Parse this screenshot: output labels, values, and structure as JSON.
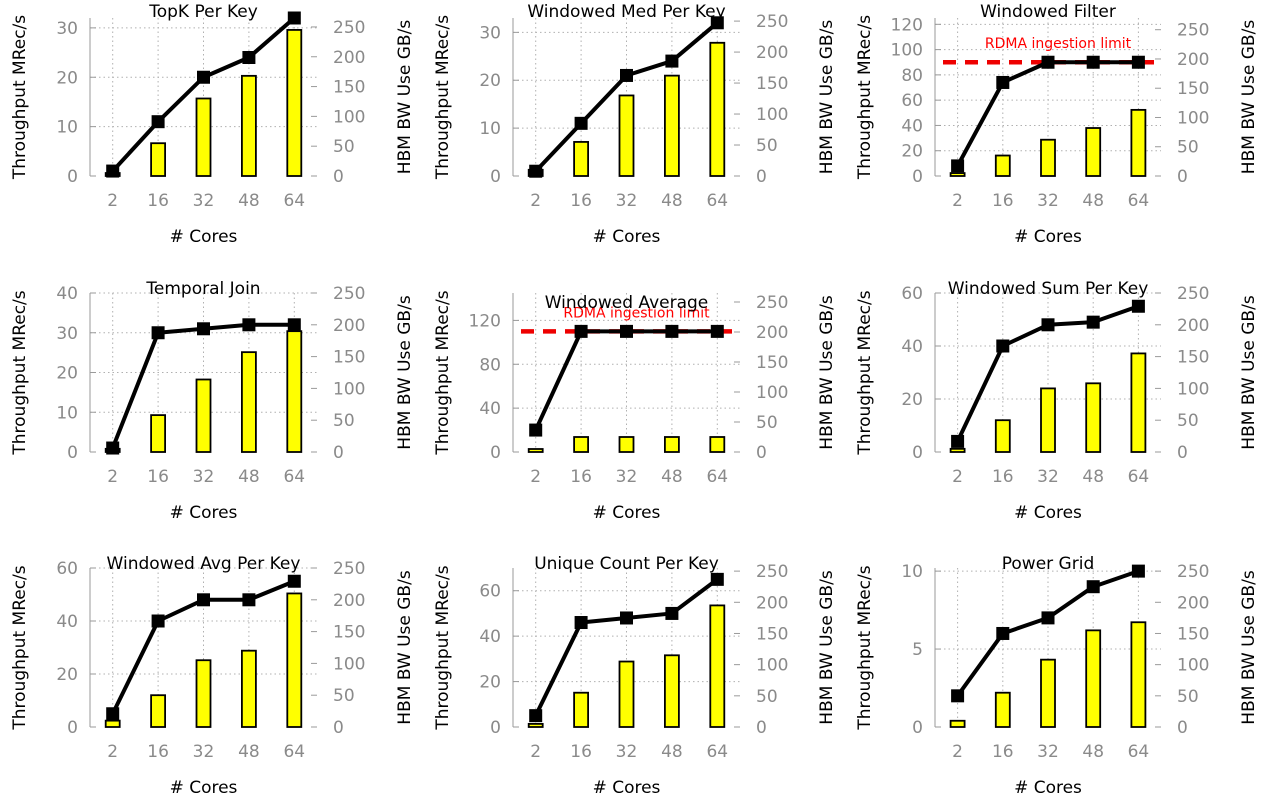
{
  "chart_data": [
    {
      "type": "bar",
      "title": "TopK Per Key",
      "xlabel": "# Cores",
      "ylabel": "Throughput MRec/s",
      "y2label": "HBM BW Use GB/s",
      "categories": [
        "2",
        "16",
        "32",
        "48",
        "64"
      ],
      "ylim": [
        0,
        32
      ],
      "yticks": [
        0,
        10,
        20,
        30
      ],
      "y2lim": [
        0,
        265
      ],
      "y2ticks": [
        0,
        50,
        100,
        150,
        200,
        250
      ],
      "series": [
        {
          "kind": "line",
          "axis": "y",
          "values": [
            1,
            11,
            20,
            24,
            32
          ]
        },
        {
          "kind": "bar",
          "axis": "y2",
          "values": [
            5,
            55,
            130,
            168,
            245
          ]
        }
      ],
      "grid": true
    },
    {
      "type": "bar",
      "title": "Windowed Med Per Key",
      "xlabel": "# Cores",
      "ylabel": "Throughput MRec/s",
      "y2label": "HBM BW Use GB/s",
      "categories": [
        "2",
        "16",
        "32",
        "48",
        "64"
      ],
      "ylim": [
        0,
        33
      ],
      "yticks": [
        0,
        10,
        20,
        30
      ],
      "y2lim": [
        0,
        255
      ],
      "y2ticks": [
        0,
        50,
        100,
        150,
        200,
        250
      ],
      "series": [
        {
          "kind": "line",
          "axis": "y",
          "values": [
            1,
            11,
            21,
            24,
            32
          ]
        },
        {
          "kind": "bar",
          "axis": "y2",
          "values": [
            10,
            55,
            130,
            162,
            215
          ]
        }
      ],
      "grid": true
    },
    {
      "type": "bar",
      "title": "Windowed Filter",
      "xlabel": "# Cores",
      "ylabel": "Throughput MRec/s",
      "y2label": "HBM BW Use GB/s",
      "categories": [
        "2",
        "16",
        "32",
        "48",
        "64"
      ],
      "ylim": [
        0,
        125
      ],
      "yticks": [
        0,
        20,
        40,
        60,
        80,
        100,
        120
      ],
      "y2lim": [
        0,
        270
      ],
      "y2ticks": [
        0,
        50,
        100,
        150,
        200,
        250
      ],
      "limit": {
        "value": 90,
        "label": "RDMA ingestion limit"
      },
      "series": [
        {
          "kind": "line",
          "axis": "y",
          "values": [
            8,
            74,
            90,
            90,
            90
          ]
        },
        {
          "kind": "bar",
          "axis": "y2",
          "values": [
            5,
            35,
            62,
            82,
            113
          ]
        }
      ],
      "grid": true
    },
    {
      "type": "bar",
      "title": "Temporal Join",
      "xlabel": "# Cores",
      "ylabel": "Throughput MRec/s",
      "y2label": "HBM BW Use GB/s",
      "categories": [
        "2",
        "16",
        "32",
        "48",
        "64"
      ],
      "ylim": [
        0,
        40
      ],
      "yticks": [
        0,
        10,
        20,
        30,
        40
      ],
      "y2lim": [
        0,
        250
      ],
      "y2ticks": [
        0,
        50,
        100,
        150,
        200,
        250
      ],
      "series": [
        {
          "kind": "line",
          "axis": "y",
          "values": [
            1,
            30,
            31,
            32,
            32
          ]
        },
        {
          "kind": "bar",
          "axis": "y2",
          "values": [
            5,
            58,
            114,
            157,
            190
          ]
        }
      ],
      "grid": true
    },
    {
      "type": "bar",
      "title": "Windowed Average",
      "xlabel": "# Cores",
      "ylabel": "Throughput MRec/s",
      "y2label": "HBM BW Use GB/s",
      "categories": [
        "2",
        "16",
        "32",
        "48",
        "64"
      ],
      "ylim": [
        0,
        145
      ],
      "yticks": [
        0,
        40,
        80,
        120
      ],
      "y2lim": [
        0,
        265
      ],
      "y2ticks": [
        0,
        50,
        100,
        150,
        200,
        250
      ],
      "limit": {
        "value": 110,
        "label": "RDMA ingestion limit"
      },
      "series": [
        {
          "kind": "line",
          "axis": "y",
          "values": [
            20,
            110,
            110,
            110,
            110
          ]
        },
        {
          "kind": "bar",
          "axis": "y2",
          "values": [
            5,
            25,
            25,
            25,
            25
          ]
        }
      ],
      "grid": true
    },
    {
      "type": "bar",
      "title": "Windowed Sum Per Key",
      "xlabel": "# Cores",
      "ylabel": "Throughput MRec/s",
      "y2label": "HBM BW Use GB/s",
      "categories": [
        "2",
        "16",
        "32",
        "48",
        "64"
      ],
      "ylim": [
        0,
        60
      ],
      "yticks": [
        0,
        20,
        40,
        60
      ],
      "y2lim": [
        0,
        250
      ],
      "y2ticks": [
        0,
        50,
        100,
        150,
        200,
        250
      ],
      "series": [
        {
          "kind": "line",
          "axis": "y",
          "values": [
            4,
            40,
            48,
            49,
            55
          ]
        },
        {
          "kind": "bar",
          "axis": "y2",
          "values": [
            5,
            50,
            100,
            108,
            155
          ]
        }
      ],
      "grid": true
    },
    {
      "type": "bar",
      "title": "Windowed Avg Per Key",
      "xlabel": "# Cores",
      "ylabel": "Throughput MRec/s",
      "y2label": "HBM BW Use GB/s",
      "categories": [
        "2",
        "16",
        "32",
        "48",
        "64"
      ],
      "ylim": [
        0,
        60
      ],
      "yticks": [
        0,
        20,
        40,
        60
      ],
      "y2lim": [
        0,
        250
      ],
      "y2ticks": [
        0,
        50,
        100,
        150,
        200,
        250
      ],
      "series": [
        {
          "kind": "line",
          "axis": "y",
          "values": [
            5,
            40,
            48,
            48,
            55
          ]
        },
        {
          "kind": "bar",
          "axis": "y2",
          "values": [
            10,
            50,
            105,
            120,
            210
          ]
        }
      ],
      "grid": true
    },
    {
      "type": "bar",
      "title": "Unique Count Per Key",
      "xlabel": "# Cores",
      "ylabel": "Throughput MRec/s",
      "y2label": "HBM BW Use GB/s",
      "categories": [
        "2",
        "16",
        "32",
        "48",
        "64"
      ],
      "ylim": [
        0,
        70
      ],
      "yticks": [
        0,
        20,
        40,
        60
      ],
      "y2lim": [
        0,
        255
      ],
      "y2ticks": [
        0,
        50,
        100,
        150,
        200,
        250
      ],
      "series": [
        {
          "kind": "line",
          "axis": "y",
          "values": [
            5,
            46,
            48,
            50,
            65
          ]
        },
        {
          "kind": "bar",
          "axis": "y2",
          "values": [
            5,
            55,
            105,
            115,
            195
          ]
        }
      ],
      "grid": true
    },
    {
      "type": "bar",
      "title": "Power Grid",
      "xlabel": "# Cores",
      "ylabel": "Throughput MRec/s",
      "y2label": "HBM BW Use GB/s",
      "categories": [
        "2",
        "16",
        "32",
        "48",
        "64"
      ],
      "ylim": [
        0,
        10.2
      ],
      "yticks": [
        0,
        5,
        10
      ],
      "y2lim": [
        0,
        255
      ],
      "y2ticks": [
        0,
        50,
        100,
        150,
        200,
        250
      ],
      "series": [
        {
          "kind": "line",
          "axis": "y",
          "values": [
            2,
            6,
            7,
            9,
            10
          ]
        },
        {
          "kind": "bar",
          "axis": "y2",
          "values": [
            10,
            55,
            108,
            155,
            168
          ]
        }
      ],
      "grid": true
    }
  ]
}
